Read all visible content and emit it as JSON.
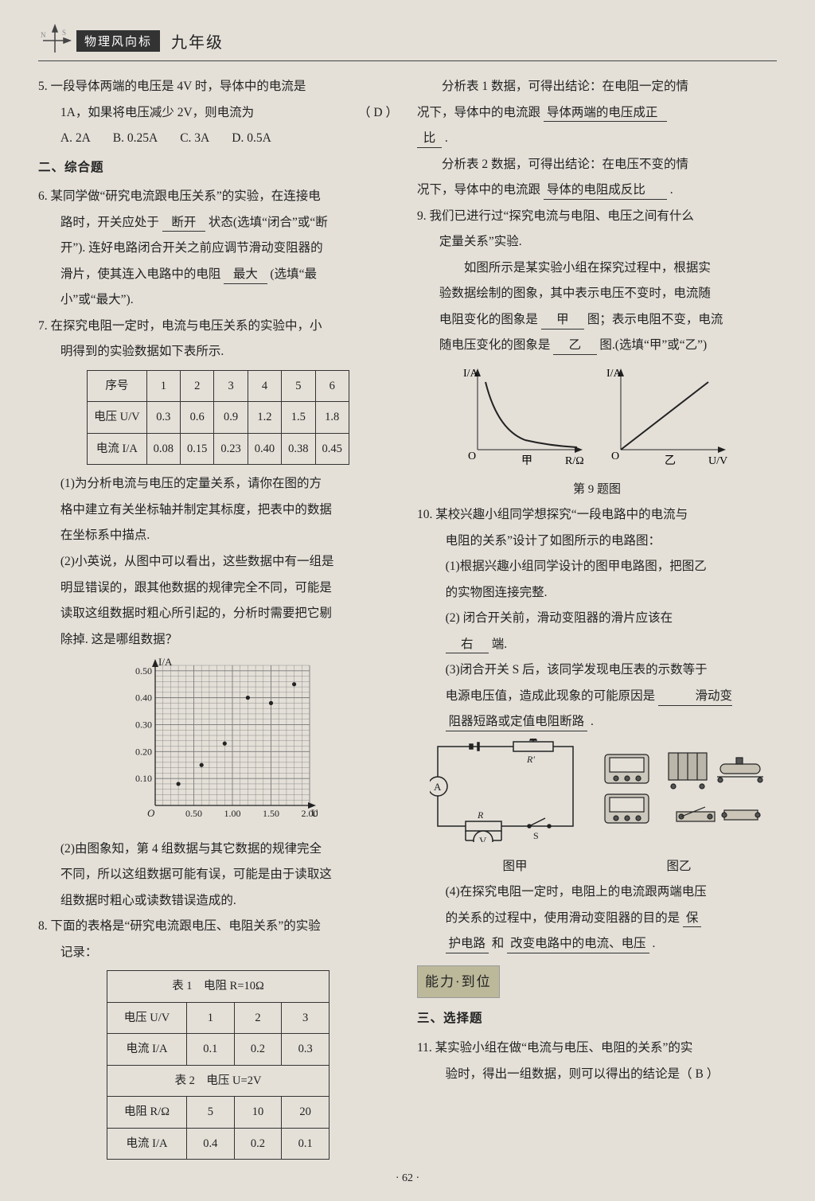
{
  "header": {
    "badge": "物理风向标",
    "grade": "九年级"
  },
  "q5": {
    "stem_a": "5. 一段导体两端的电压是 4V 时，导体中的电流是",
    "stem_b": "1A，如果将电压减少 2V，则电流为",
    "paren": "（ D ）",
    "A": "A. 2A",
    "B": "B. 0.25A",
    "C": "C. 3A",
    "D": "D. 0.5A"
  },
  "sec2": "二、综合题",
  "q6": {
    "a": "6. 某同学做“研究电流跟电压关系”的实验，在连接电",
    "b": "路时，开关应处于",
    "ans1": "断开",
    "c": "状态(选填“闭合”或“断",
    "d": "开”). 连好电路闭合开关之前应调节滑动变阻器的",
    "e": "滑片，使其连入电路中的电阻",
    "ans2": "最大",
    "f": "(选填“最",
    "g": "小”或“最大”)."
  },
  "q7": {
    "a": "7. 在探究电阻一定时，电流与电压关系的实验中，小",
    "b": "明得到的实验数据如下表所示.",
    "table": {
      "head": [
        "序号",
        "1",
        "2",
        "3",
        "4",
        "5",
        "6"
      ],
      "rows": [
        [
          "电压 U/V",
          "0.3",
          "0.6",
          "0.9",
          "1.2",
          "1.5",
          "1.8"
        ],
        [
          "电流 I/A",
          "0.08",
          "0.15",
          "0.23",
          "0.40",
          "0.38",
          "0.45"
        ]
      ]
    },
    "p1a": "(1)为分析电流与电压的定量关系，请你在图的方",
    "p1b": "格中建立有关坐标轴并制定其标度，把表中的数据",
    "p1c": "在坐标系中描点.",
    "p2a": "(2)小英说，从图中可以看出，这些数据中有一组是",
    "p2b": "明显错误的，跟其他数据的规律完全不同，可能是",
    "p2c": "读取这组数据时粗心所引起的，分析时需要把它剔",
    "p2d": "除掉. 这是哪组数据？",
    "ans_a": "(2)由图象知，第 4 组数据与其它数据的规律完全",
    "ans_b": "不同，所以这组数据可能有误，可能是由于读取这",
    "ans_c": "组数据时粗心或读数错误造成的.",
    "chart": {
      "ylabel": "I/A",
      "xlabel": "U/V",
      "yticks": [
        "0.10",
        "0.20",
        "0.30",
        "0.40",
        "0.50"
      ],
      "xticks": [
        "0.50",
        "1.00",
        "1.50",
        "2.00"
      ],
      "points": [
        [
          0.3,
          0.08
        ],
        [
          0.6,
          0.15
        ],
        [
          0.9,
          0.23
        ],
        [
          1.2,
          0.4
        ],
        [
          1.5,
          0.38
        ],
        [
          1.8,
          0.45
        ]
      ],
      "xlim": [
        0,
        2.0
      ],
      "ylim": [
        0,
        0.52
      ],
      "grid_color": "#7a7a7a",
      "bg": "#d8d4cc",
      "axis": "#222",
      "point": "#222"
    }
  },
  "q8": {
    "a": "8. 下面的表格是“研究电流跟电压、电阻关系”的实验",
    "b": "记录：",
    "t1_title": "表 1　电阻 R=10Ω",
    "t1": {
      "head": [
        "电压 U/V",
        "1",
        "2",
        "3"
      ],
      "row": [
        "电流 I/A",
        "0.1",
        "0.2",
        "0.3"
      ]
    },
    "t2_title": "表 2　电压 U=2V",
    "t2": {
      "head": [
        "电阻 R/Ω",
        "5",
        "10",
        "20"
      ],
      "row": [
        "电流 I/A",
        "0.4",
        "0.2",
        "0.1"
      ]
    },
    "r1a": "分析表 1 数据，可得出结论：在电阻一定的情",
    "r1b": "况下，导体中的电流跟",
    "ans1_a": "导体两端的电压成正",
    "ans1_b": "比",
    "r2a": "分析表 2 数据，可得出结论：在电压不变的情",
    "r2b": "况下，导体中的电流跟",
    "ans2": "导体的电阻成反比"
  },
  "q9": {
    "a": "9. 我们已进行过“探究电流与电阻、电压之间有什么",
    "b": "定量关系”实验.",
    "c": "如图所示是某实验小组在探究过程中，根据实",
    "d": "验数据绘制的图象，其中表示电压不变时，电流随",
    "e": "电阻变化的图象是",
    "ans1": "甲",
    "f": "图；表示电阻不变，电流",
    "g": "随电压变化的图象是",
    "ans2": "乙",
    "h": "图.(选填“甲”或“乙”)",
    "cap": "第 9 题图",
    "labels": {
      "y": "I/A",
      "x1": "R/Ω",
      "x2": "U/V",
      "jia": "甲",
      "yi": "乙",
      "O": "O"
    }
  },
  "q10": {
    "a": "10. 某校兴趣小组同学想探究“一段电路中的电流与",
    "b": "电阻的关系”设计了如图所示的电路图：",
    "p1a": "(1)根据兴趣小组同学设计的图甲电路图，把图乙",
    "p1b": "的实物图连接完整.",
    "p2a": "(2) 闭合开关前，滑动变阻器的滑片应该在",
    "ans2": "右",
    "p2b": "端.",
    "p3a": "(3)闭合开关 S 后，该同学发现电压表的示数等于",
    "p3b": "电源电压值，造成此现象的可能原因是",
    "ans3a": "滑动变",
    "ans3b": "阻器短路或定值电阻断路",
    "cap_l": "图甲",
    "cap_r": "图乙",
    "p4a": "(4)在探究电阻一定时，电阻上的电流跟两端电压",
    "p4b": "的关系的过程中，使用滑动变阻器的目的是",
    "ans4a": "保",
    "ans4b": "护电路",
    "mid": "和",
    "ans4c": "改变电路中的电流、电压"
  },
  "ability": "能力·到位",
  "sec3": "三、选择题",
  "q11": {
    "a": "11. 某实验小组在做“电流与电压、电阻的关系”的实",
    "b": "验时，得出一组数据，则可以得出的结论是（ B ）"
  },
  "pagenum": "· 62 ·"
}
